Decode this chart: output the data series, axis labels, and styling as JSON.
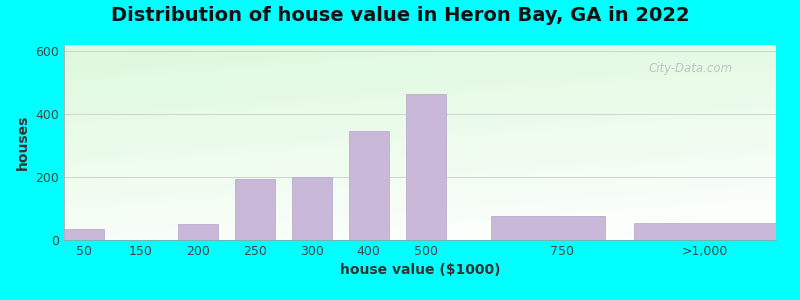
{
  "title": "Distribution of house value in Heron Bay, GA in 2022",
  "xlabel": "house value ($1000)",
  "ylabel": "houses",
  "bar_heights": [
    35,
    50,
    195,
    200,
    345,
    465,
    75,
    55
  ],
  "bar_left_edges": [
    0,
    2,
    3,
    4,
    5,
    6,
    7.5,
    10
  ],
  "bar_widths": [
    0.7,
    0.7,
    0.7,
    0.7,
    0.7,
    0.7,
    2.0,
    2.5
  ],
  "xtick_positions": [
    0.35,
    1.35,
    2.35,
    3.35,
    4.35,
    5.35,
    6.35,
    8.75,
    11.25
  ],
  "xtick_labels": [
    "50",
    "150",
    "200",
    "250",
    "300",
    "400",
    "500",
    "750",
    ">1,000"
  ],
  "xlim": [
    0,
    12.5
  ],
  "bar_color": "#c9b8d8",
  "bar_edgecolor": "#b5a5cc",
  "ylim": [
    0,
    620
  ],
  "yticks": [
    0,
    200,
    400,
    600
  ],
  "outer_bg_color": "#00ffff",
  "title_fontsize": 14,
  "axis_label_fontsize": 10,
  "tick_fontsize": 9,
  "watermark_text": "City-Data.com"
}
